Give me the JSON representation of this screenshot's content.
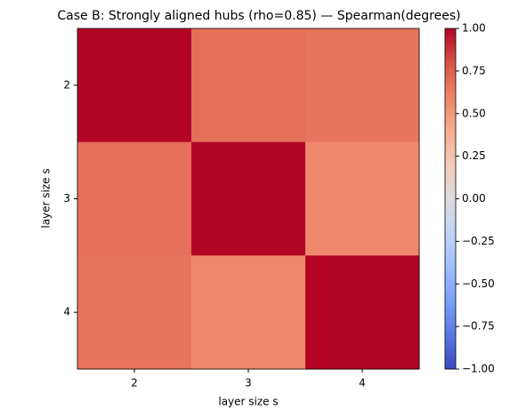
{
  "chart_data": {
    "type": "heatmap",
    "title": "Case B: Strongly aligned hubs (rho=0.85) — Spearman(degrees)",
    "x_label": "layer size s",
    "y_label": "layer size s",
    "x_categories": [
      "2",
      "3",
      "4"
    ],
    "y_categories": [
      "2",
      "3",
      "4"
    ],
    "values": [
      [
        1,
        0.68,
        0.66
      ],
      [
        0.68,
        1,
        0.58
      ],
      [
        0.66,
        0.58,
        1
      ]
    ],
    "colormap": "coolwarm",
    "clim": [
      -1,
      1
    ],
    "cticks": [
      {
        "value": -1,
        "label": "−1.00"
      },
      {
        "value": -0.75,
        "label": "−0.75"
      },
      {
        "value": -0.5,
        "label": "−0.50"
      },
      {
        "value": -0.25,
        "label": "−0.25"
      },
      {
        "value": 0,
        "label": "0.00"
      },
      {
        "value": 0.25,
        "label": "0.25"
      },
      {
        "value": 0.5,
        "label": "0.50"
      },
      {
        "value": 0.75,
        "label": "0.75"
      },
      {
        "value": 1,
        "label": "1.00"
      }
    ]
  }
}
